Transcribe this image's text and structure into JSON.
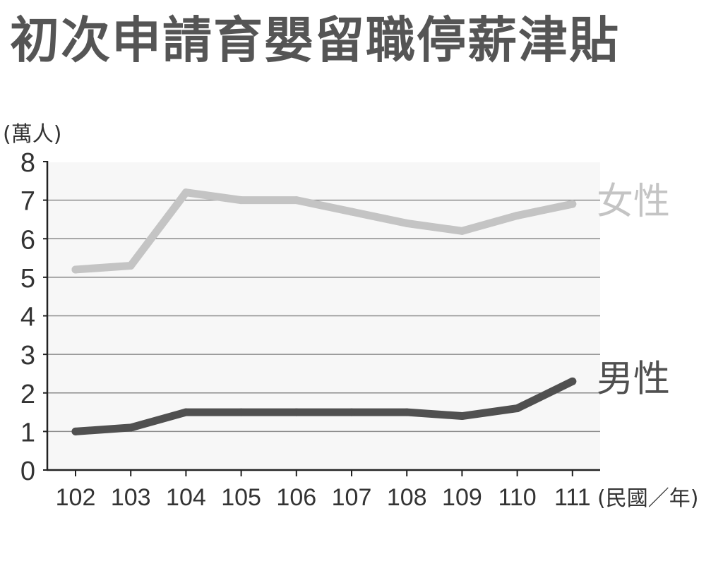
{
  "chart_data": {
    "type": "line",
    "title": "初次申請育嬰留職停薪津貼",
    "ylabel": "(萬人)",
    "xlabel": "(民國／年)",
    "categories": [
      "102",
      "103",
      "104",
      "105",
      "106",
      "107",
      "108",
      "109",
      "110",
      "111"
    ],
    "y_ticks": [
      "0",
      "1",
      "2",
      "3",
      "4",
      "5",
      "6",
      "7",
      "8"
    ],
    "ylim": [
      0,
      8
    ],
    "grid": true,
    "series": [
      {
        "name": "女性",
        "color": "#c4c4c4",
        "values": [
          5.2,
          5.3,
          7.2,
          7.0,
          7.0,
          6.7,
          6.4,
          6.2,
          6.6,
          6.9
        ]
      },
      {
        "name": "男性",
        "color": "#505050",
        "values": [
          1.0,
          1.1,
          1.5,
          1.5,
          1.5,
          1.5,
          1.5,
          1.4,
          1.6,
          2.3
        ]
      }
    ]
  }
}
